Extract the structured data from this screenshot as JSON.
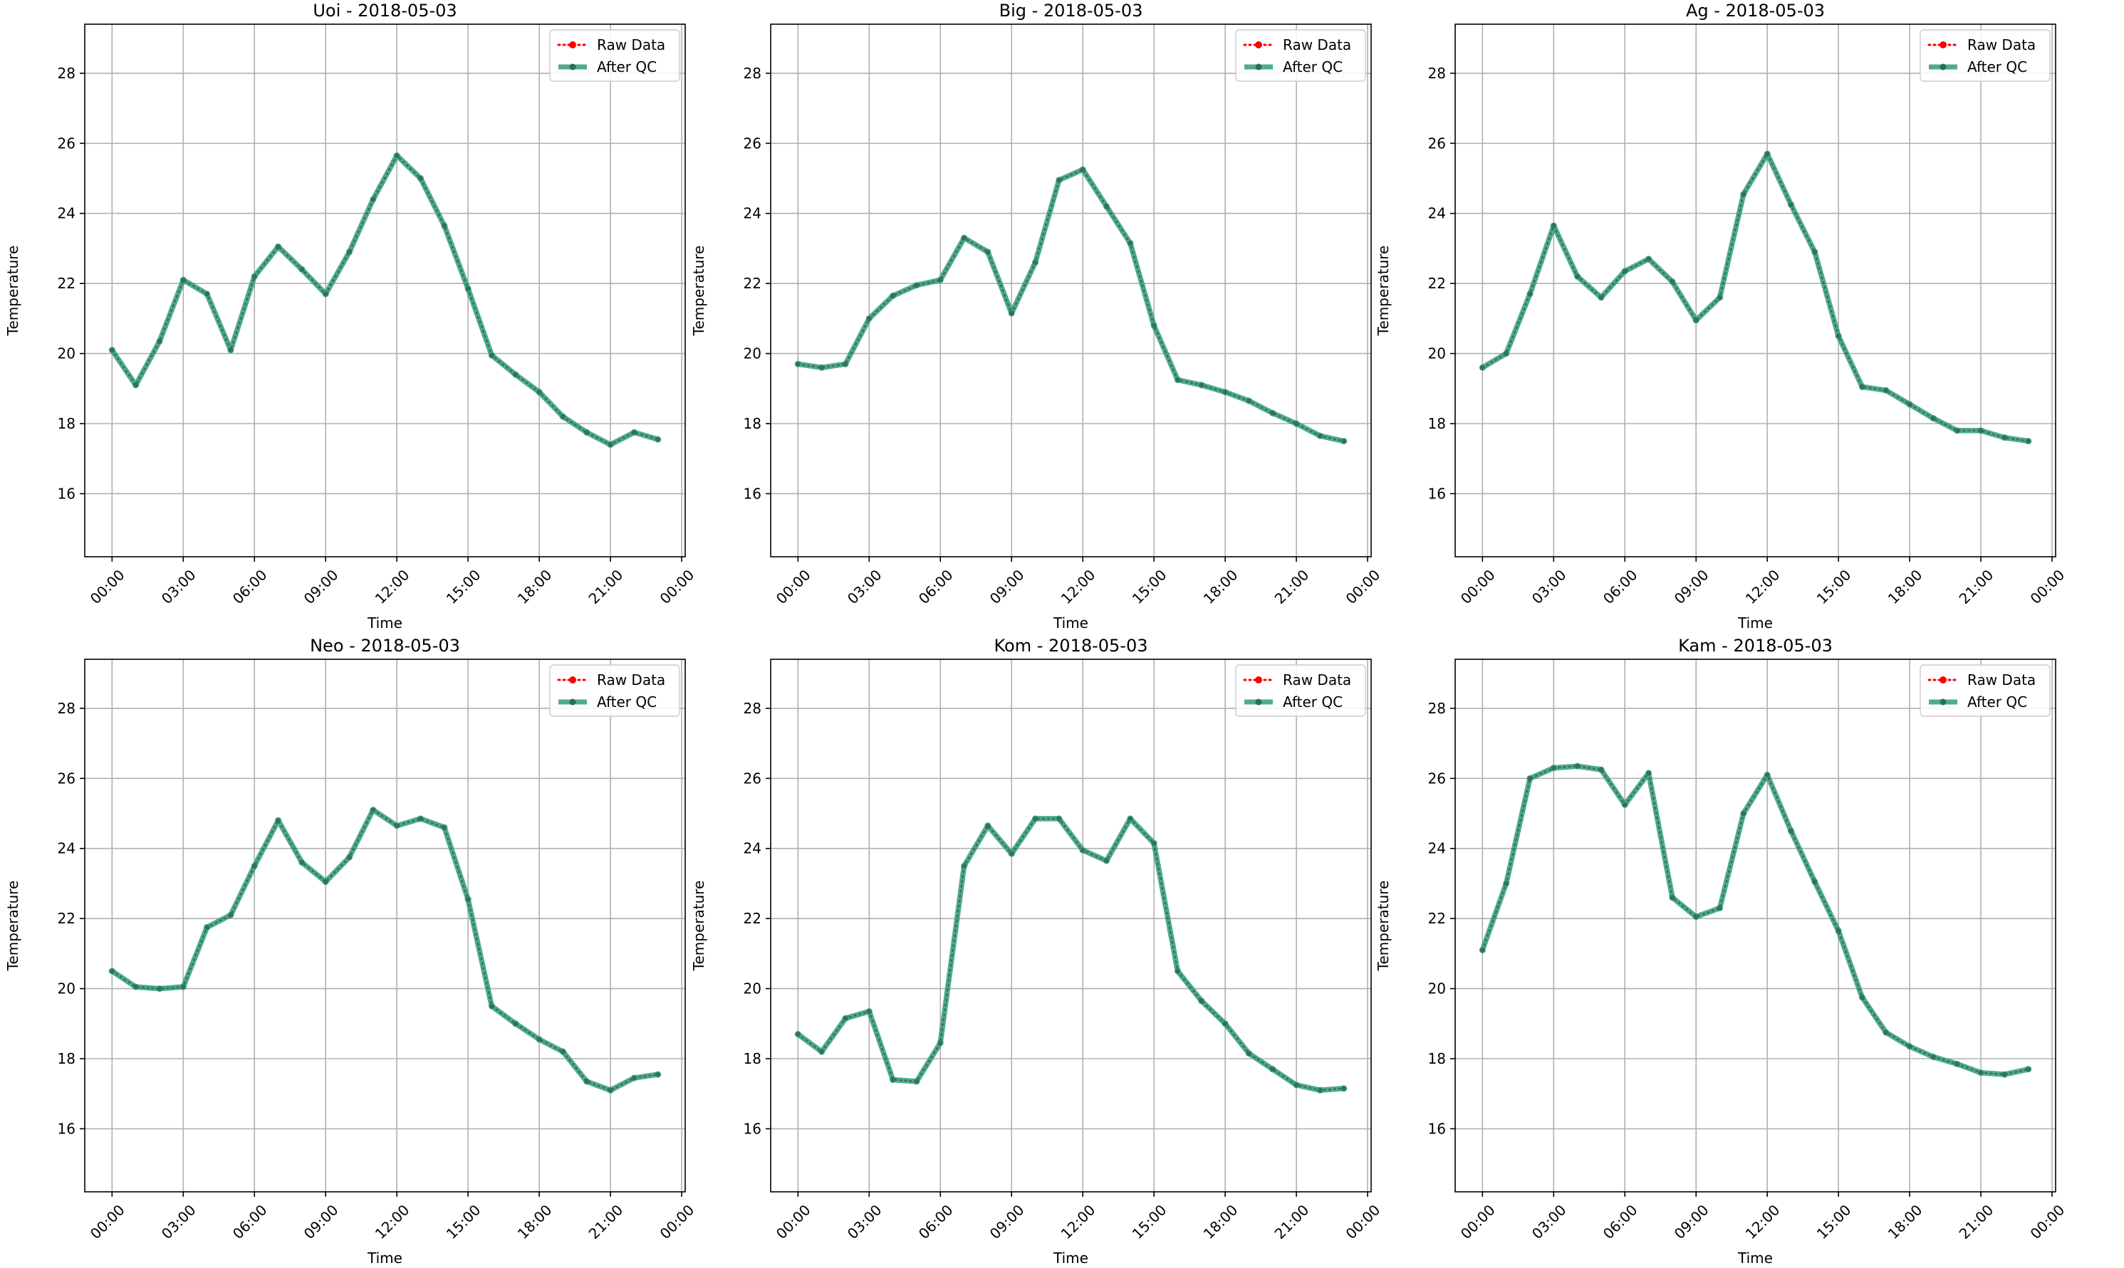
{
  "figure": {
    "legend_labels": {
      "raw": "Raw Data",
      "qc": "After QC"
    }
  },
  "chart_data": [
    {
      "type": "line",
      "title": "Uoi - 2018-05-03",
      "xlabel": "Time",
      "ylabel": "Temperature",
      "x_unit": "hour",
      "x": [
        0,
        1,
        2,
        3,
        4,
        5,
        6,
        7,
        8,
        9,
        10,
        11,
        12,
        13,
        14,
        15,
        16,
        17,
        18,
        19,
        20,
        21,
        22,
        23
      ],
      "xlim": [
        -1.15,
        24.15
      ],
      "ylim": [
        14.2,
        29.4
      ],
      "xticks": [
        0,
        3,
        6,
        9,
        12,
        15,
        18,
        21,
        24
      ],
      "xtick_labels": [
        "00:00",
        "03:00",
        "06:00",
        "09:00",
        "12:00",
        "15:00",
        "18:00",
        "21:00",
        "00:00"
      ],
      "yticks": [
        16,
        18,
        20,
        22,
        24,
        26,
        28
      ],
      "ytick_labels": [
        "16",
        "18",
        "20",
        "22",
        "24",
        "26",
        "28"
      ],
      "grid": true,
      "legend_position": "top-right",
      "series": [
        {
          "name": "Raw Data",
          "color": "#ff0000",
          "style": "dotted",
          "marker": "circle",
          "values": [
            20.1,
            19.1,
            20.35,
            22.1,
            21.7,
            20.1,
            22.2,
            23.05,
            22.4,
            21.7,
            22.9,
            24.4,
            25.65,
            25.0,
            23.65,
            21.85,
            19.95,
            19.4,
            18.9,
            18.2,
            17.75,
            17.4,
            17.75,
            17.55
          ]
        },
        {
          "name": "After QC",
          "color": "#2e9d7a",
          "style": "solid",
          "marker": "circle",
          "values": [
            20.1,
            19.1,
            20.35,
            22.1,
            21.7,
            20.1,
            22.2,
            23.05,
            22.4,
            21.7,
            22.9,
            24.4,
            25.65,
            25.0,
            23.65,
            21.85,
            19.95,
            19.4,
            18.9,
            18.2,
            17.75,
            17.4,
            17.75,
            17.55
          ]
        }
      ]
    },
    {
      "type": "line",
      "title": "Big - 2018-05-03",
      "xlabel": "Time",
      "ylabel": "Temperature",
      "x_unit": "hour",
      "x": [
        0,
        1,
        2,
        3,
        4,
        5,
        6,
        7,
        8,
        9,
        10,
        11,
        12,
        13,
        14,
        15,
        16,
        17,
        18,
        19,
        20,
        21,
        22,
        23
      ],
      "xlim": [
        -1.15,
        24.15
      ],
      "ylim": [
        14.2,
        29.4
      ],
      "xticks": [
        0,
        3,
        6,
        9,
        12,
        15,
        18,
        21,
        24
      ],
      "xtick_labels": [
        "00:00",
        "03:00",
        "06:00",
        "09:00",
        "12:00",
        "15:00",
        "18:00",
        "21:00",
        "00:00"
      ],
      "yticks": [
        16,
        18,
        20,
        22,
        24,
        26,
        28
      ],
      "ytick_labels": [
        "16",
        "18",
        "20",
        "22",
        "24",
        "26",
        "28"
      ],
      "grid": true,
      "legend_position": "top-right",
      "series": [
        {
          "name": "Raw Data",
          "color": "#ff0000",
          "style": "dotted",
          "marker": "circle",
          "values": [
            19.7,
            19.6,
            19.7,
            21.0,
            21.65,
            21.95,
            22.1,
            23.3,
            22.9,
            21.15,
            22.6,
            24.95,
            25.25,
            24.2,
            23.15,
            20.8,
            19.25,
            19.1,
            18.9,
            18.65,
            18.3,
            18.0,
            17.65,
            17.5
          ]
        },
        {
          "name": "After QC",
          "color": "#2e9d7a",
          "style": "solid",
          "marker": "circle",
          "values": [
            19.7,
            19.6,
            19.7,
            21.0,
            21.65,
            21.95,
            22.1,
            23.3,
            22.9,
            21.15,
            22.6,
            24.95,
            25.25,
            24.2,
            23.15,
            20.8,
            19.25,
            19.1,
            18.9,
            18.65,
            18.3,
            18.0,
            17.65,
            17.5
          ]
        }
      ]
    },
    {
      "type": "line",
      "title": "Ag - 2018-05-03",
      "xlabel": "Time",
      "ylabel": "Temperature",
      "x_unit": "hour",
      "x": [
        0,
        1,
        2,
        3,
        4,
        5,
        6,
        7,
        8,
        9,
        10,
        11,
        12,
        13,
        14,
        15,
        16,
        17,
        18,
        19,
        20,
        21,
        22,
        23
      ],
      "xlim": [
        -1.15,
        24.15
      ],
      "ylim": [
        14.2,
        29.4
      ],
      "xticks": [
        0,
        3,
        6,
        9,
        12,
        15,
        18,
        21,
        24
      ],
      "xtick_labels": [
        "00:00",
        "03:00",
        "06:00",
        "09:00",
        "12:00",
        "15:00",
        "18:00",
        "21:00",
        "00:00"
      ],
      "yticks": [
        16,
        18,
        20,
        22,
        24,
        26,
        28
      ],
      "ytick_labels": [
        "16",
        "18",
        "20",
        "22",
        "24",
        "26",
        "28"
      ],
      "grid": true,
      "legend_position": "top-right",
      "series": [
        {
          "name": "Raw Data",
          "color": "#ff0000",
          "style": "dotted",
          "marker": "circle",
          "values": [
            19.6,
            20.0,
            21.7,
            23.65,
            22.2,
            21.6,
            22.35,
            22.7,
            22.05,
            20.95,
            21.6,
            24.55,
            25.7,
            24.25,
            22.9,
            20.5,
            19.05,
            18.95,
            18.55,
            18.15,
            17.8,
            17.8,
            17.6,
            17.5
          ]
        },
        {
          "name": "After QC",
          "color": "#2e9d7a",
          "style": "solid",
          "marker": "circle",
          "values": [
            19.6,
            20.0,
            21.7,
            23.65,
            22.2,
            21.6,
            22.35,
            22.7,
            22.05,
            20.95,
            21.6,
            24.55,
            25.7,
            24.25,
            22.9,
            20.5,
            19.05,
            18.95,
            18.55,
            18.15,
            17.8,
            17.8,
            17.6,
            17.5
          ]
        }
      ]
    },
    {
      "type": "line",
      "title": "Neo - 2018-05-03",
      "xlabel": "Time",
      "ylabel": "Temperature",
      "x_unit": "hour",
      "x": [
        0,
        1,
        2,
        3,
        4,
        5,
        6,
        7,
        8,
        9,
        10,
        11,
        12,
        13,
        14,
        15,
        16,
        17,
        18,
        19,
        20,
        21,
        22,
        23
      ],
      "xlim": [
        -1.15,
        24.15
      ],
      "ylim": [
        14.2,
        29.4
      ],
      "xticks": [
        0,
        3,
        6,
        9,
        12,
        15,
        18,
        21,
        24
      ],
      "xtick_labels": [
        "00:00",
        "03:00",
        "06:00",
        "09:00",
        "12:00",
        "15:00",
        "18:00",
        "21:00",
        "00:00"
      ],
      "yticks": [
        16,
        18,
        20,
        22,
        24,
        26,
        28
      ],
      "ytick_labels": [
        "16",
        "18",
        "20",
        "22",
        "24",
        "26",
        "28"
      ],
      "grid": true,
      "legend_position": "top-right",
      "series": [
        {
          "name": "Raw Data",
          "color": "#ff0000",
          "style": "dotted",
          "marker": "circle",
          "values": [
            20.5,
            20.05,
            20.0,
            20.05,
            21.75,
            22.1,
            23.5,
            24.8,
            23.6,
            23.05,
            23.75,
            25.1,
            24.65,
            24.85,
            24.6,
            22.55,
            19.5,
            19.0,
            18.55,
            18.2,
            17.35,
            17.1,
            17.45,
            17.55
          ]
        },
        {
          "name": "After QC",
          "color": "#2e9d7a",
          "style": "solid",
          "marker": "circle",
          "values": [
            20.5,
            20.05,
            20.0,
            20.05,
            21.75,
            22.1,
            23.5,
            24.8,
            23.6,
            23.05,
            23.75,
            25.1,
            24.65,
            24.85,
            24.6,
            22.55,
            19.5,
            19.0,
            18.55,
            18.2,
            17.35,
            17.1,
            17.45,
            17.55
          ]
        }
      ]
    },
    {
      "type": "line",
      "title": "Kom - 2018-05-03",
      "xlabel": "Time",
      "ylabel": "Temperature",
      "x_unit": "hour",
      "x": [
        0,
        1,
        2,
        3,
        4,
        5,
        6,
        7,
        8,
        9,
        10,
        11,
        12,
        13,
        14,
        15,
        16,
        17,
        18,
        19,
        20,
        21,
        22,
        23
      ],
      "xlim": [
        -1.15,
        24.15
      ],
      "ylim": [
        14.2,
        29.4
      ],
      "xticks": [
        0,
        3,
        6,
        9,
        12,
        15,
        18,
        21,
        24
      ],
      "xtick_labels": [
        "00:00",
        "03:00",
        "06:00",
        "09:00",
        "12:00",
        "15:00",
        "18:00",
        "21:00",
        "00:00"
      ],
      "yticks": [
        16,
        18,
        20,
        22,
        24,
        26,
        28
      ],
      "ytick_labels": [
        "16",
        "18",
        "20",
        "22",
        "24",
        "26",
        "28"
      ],
      "grid": true,
      "legend_position": "top-right",
      "series": [
        {
          "name": "Raw Data",
          "color": "#ff0000",
          "style": "dotted",
          "marker": "circle",
          "values": [
            18.7,
            18.2,
            19.15,
            19.35,
            17.4,
            17.35,
            18.45,
            23.5,
            24.65,
            23.85,
            24.85,
            24.85,
            23.95,
            23.65,
            24.85,
            24.15,
            20.5,
            19.65,
            19.0,
            18.15,
            17.7,
            17.25,
            17.1,
            17.15
          ]
        },
        {
          "name": "After QC",
          "color": "#2e9d7a",
          "style": "solid",
          "marker": "circle",
          "values": [
            18.7,
            18.2,
            19.15,
            19.35,
            17.4,
            17.35,
            18.45,
            23.5,
            24.65,
            23.85,
            24.85,
            24.85,
            23.95,
            23.65,
            24.85,
            24.15,
            20.5,
            19.65,
            19.0,
            18.15,
            17.7,
            17.25,
            17.1,
            17.15
          ]
        }
      ]
    },
    {
      "type": "line",
      "title": "Kam - 2018-05-03",
      "xlabel": "Time",
      "ylabel": "Temperature",
      "x_unit": "hour",
      "x": [
        0,
        1,
        2,
        3,
        4,
        5,
        6,
        7,
        8,
        9,
        10,
        11,
        12,
        13,
        14,
        15,
        16,
        17,
        18,
        19,
        20,
        21,
        22,
        23
      ],
      "xlim": [
        -1.15,
        24.15
      ],
      "ylim": [
        14.2,
        29.4
      ],
      "xticks": [
        0,
        3,
        6,
        9,
        12,
        15,
        18,
        21,
        24
      ],
      "xtick_labels": [
        "00:00",
        "03:00",
        "06:00",
        "09:00",
        "12:00",
        "15:00",
        "18:00",
        "21:00",
        "00:00"
      ],
      "yticks": [
        16,
        18,
        20,
        22,
        24,
        26,
        28
      ],
      "ytick_labels": [
        "16",
        "18",
        "20",
        "22",
        "24",
        "26",
        "28"
      ],
      "grid": true,
      "legend_position": "top-right",
      "series": [
        {
          "name": "Raw Data",
          "color": "#ff0000",
          "style": "dotted",
          "marker": "circle",
          "values": [
            21.1,
            23.0,
            26.0,
            26.3,
            26.35,
            26.25,
            25.25,
            26.15,
            22.6,
            22.05,
            22.3,
            25.0,
            26.1,
            24.5,
            23.05,
            21.65,
            19.75,
            18.75,
            18.35,
            18.05,
            17.85,
            17.6,
            17.55,
            17.7
          ]
        },
        {
          "name": "After QC",
          "color": "#2e9d7a",
          "style": "solid",
          "marker": "circle",
          "values": [
            21.1,
            23.0,
            26.0,
            26.3,
            26.35,
            26.25,
            25.25,
            26.15,
            22.6,
            22.05,
            22.3,
            25.0,
            26.1,
            24.5,
            23.05,
            21.65,
            19.75,
            18.75,
            18.35,
            18.05,
            17.85,
            17.6,
            17.55,
            17.7
          ]
        }
      ]
    }
  ]
}
